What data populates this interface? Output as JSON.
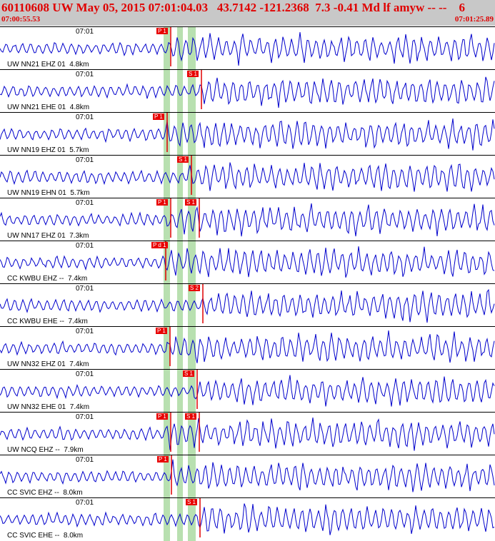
{
  "header": {
    "title": "60110608 UW May 05, 2015 07:01:04.03   43.7142 -121.2368  7.3 -0.41 Md lf amyw -- --    6",
    "time_start": "07:00:55.53",
    "time_end": "07:01:25.89"
  },
  "colors": {
    "trace": "#0000cc",
    "pick": "#e00000",
    "marker": "#b8e0b0",
    "header_bg": "#c8c8c8",
    "title": "#e00000"
  },
  "panels": [
    {
      "minute": "07:01",
      "label": "UW NN21 EHZ 01  4.8km",
      "picks": [
        "P 1",
        ""
      ]
    },
    {
      "minute": "07:01",
      "label": "UW NN21 EHE 01  4.8km",
      "picks": [
        "",
        "S 1"
      ]
    },
    {
      "minute": "07:01",
      "label": "UW NN19 EHZ 01  5.7km",
      "picks": [
        "P 1",
        ""
      ]
    },
    {
      "minute": "07:01",
      "label": "UW NN19 EHN 01  5.7km",
      "picks": [
        "",
        "S 1"
      ]
    },
    {
      "minute": "07:01",
      "label": "UW NN17 EHZ 01  7.3km",
      "picks": [
        "P 1",
        "S 1"
      ]
    },
    {
      "minute": "07:01",
      "label": "CC KWBU EHZ --  7.4km",
      "picks": [
        "P d 1",
        ""
      ]
    },
    {
      "minute": "07:01",
      "label": "CC KWBU EHE --  7.4km",
      "picks": [
        "",
        "S 2"
      ]
    },
    {
      "minute": "07:01",
      "label": "UW NN32 EHZ 01  7.4km",
      "picks": [
        "P 1",
        ""
      ]
    },
    {
      "minute": "07:01",
      "label": "UW NN32 EHE 01  7.4km",
      "picks": [
        "",
        "S 1"
      ]
    },
    {
      "minute": "07:01",
      "label": "UW NCQ EHZ --  7.9km",
      "picks": [
        "P 1",
        "S 1"
      ]
    },
    {
      "minute": "07:01",
      "label": "CC SVIC EHZ --  8.0km",
      "picks": [
        "P 1",
        ""
      ]
    },
    {
      "minute": "07:01",
      "label": "CC SVIC EHE --  8.0km",
      "picks": [
        "",
        "S 1"
      ]
    }
  ]
}
